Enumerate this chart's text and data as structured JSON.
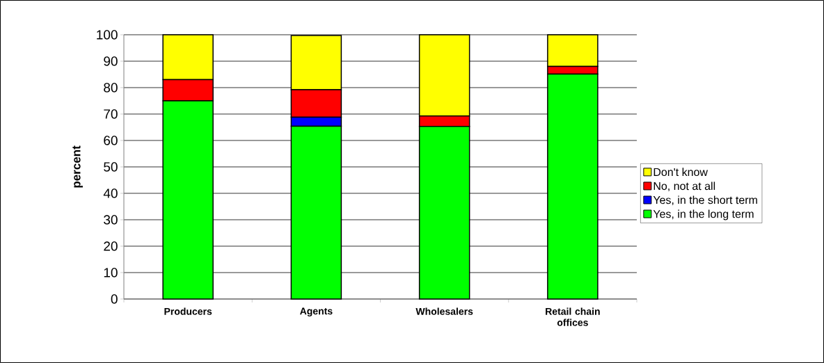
{
  "chart_data": {
    "type": "bar",
    "stacked": true,
    "ylabel": "percent",
    "categories": [
      "Producers",
      "Agents",
      "Wholesalers",
      "Retail chain offices"
    ],
    "series": [
      {
        "name": "Yes, in the long term",
        "color": "#00ff00",
        "values": [
          75,
          65.4,
          65.3,
          85.1
        ]
      },
      {
        "name": "Yes, in the short term",
        "color": "#0000ff",
        "values": [
          0,
          3.4,
          0,
          0
        ]
      },
      {
        "name": "No, not at all",
        "color": "#ff0000",
        "values": [
          8,
          10.4,
          4,
          2.9
        ]
      },
      {
        "name": "Don't know",
        "color": "#ffff00",
        "values": [
          17,
          20.5,
          30.7,
          12
        ]
      }
    ],
    "ylim": [
      0,
      100
    ],
    "yticks": [
      0,
      10,
      20,
      30,
      40,
      50,
      60,
      70,
      80,
      90,
      100
    ],
    "grid": "y",
    "legend": "right"
  }
}
